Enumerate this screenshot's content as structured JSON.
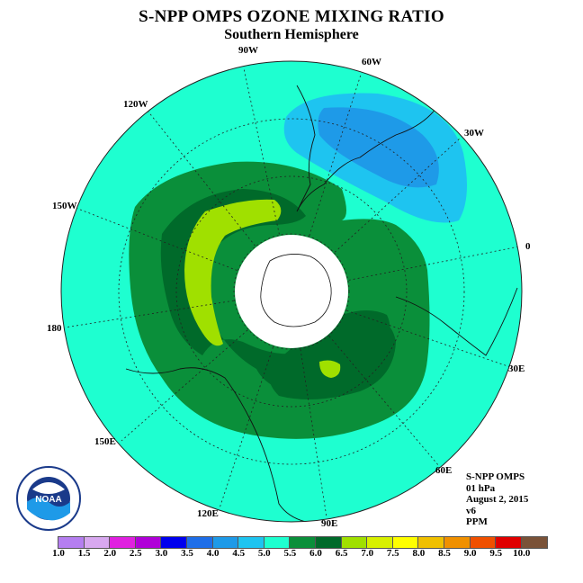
{
  "title": "S-NPP OMPS OZONE MIXING RATIO",
  "subtitle": "Southern Hemisphere",
  "longitude_labels": {
    "w90": "90W",
    "w60": "60W",
    "w120": "120W",
    "w30": "30W",
    "w150": "150W",
    "e0": "0",
    "l180": "180",
    "e30": "30E",
    "e150": "150E",
    "e60": "60E",
    "e120": "120E",
    "e90": "90E"
  },
  "info": {
    "instrument": "S-NPP OMPS",
    "level": "01 hPa",
    "date": "August 2, 2015",
    "version": "v6",
    "units": "PPM"
  },
  "colorbar": {
    "ticks": [
      "1.0",
      "1.5",
      "2.0",
      "2.5",
      "3.0",
      "3.5",
      "4.0",
      "4.5",
      "5.0",
      "5.5",
      "6.0",
      "6.5",
      "7.0",
      "7.5",
      "8.0",
      "8.5",
      "9.0",
      "9.5",
      "10.0"
    ],
    "colors": [
      "#b57ef0",
      "#d8a8f0",
      "#e020e0",
      "#b000d8",
      "#0000ee",
      "#1e6ee8",
      "#1e9ae8",
      "#1ec4f0",
      "#1effd0",
      "#0a8f3a",
      "#006a2a",
      "#a0e000",
      "#d8f000",
      "#ffff00",
      "#f0c000",
      "#f09000",
      "#f05000",
      "#e00000",
      "#7a5238"
    ]
  },
  "logo_text": "NOAA"
}
